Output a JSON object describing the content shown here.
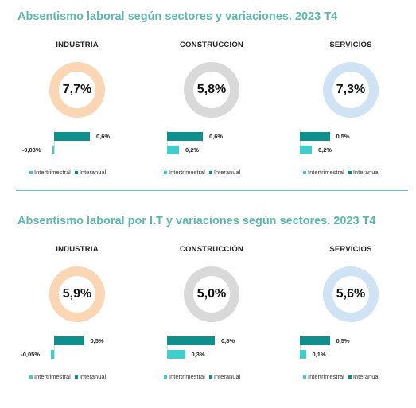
{
  "colors": {
    "title": "#5bb8ac",
    "intertrimestral": "#3ccfcb",
    "interanual": "#0e918c",
    "industria": "#fbd6b4",
    "construccion": "#d9d9d9",
    "servicios": "#cfe3f5"
  },
  "legend": {
    "intertrimestral": "Intertrimestral",
    "interanual": "Interanual"
  },
  "panels": [
    {
      "title": "Absentismo laboral según sectores y variaciones. 2023 T4",
      "sectors": [
        {
          "name": "INDUSTRIA",
          "rate": 7.7,
          "rate_label": "7,7%",
          "interanual": 0.6,
          "interanual_label": "0,6%",
          "intertrimestral": -0.03,
          "intertrimestral_label": "-0,03%"
        },
        {
          "name": "CONSTRUCCIÓN",
          "rate": 5.8,
          "rate_label": "5,8%",
          "interanual": 0.6,
          "interanual_label": "0,6%",
          "intertrimestral": 0.2,
          "intertrimestral_label": "0,2%"
        },
        {
          "name": "SERVICIOS",
          "rate": 7.3,
          "rate_label": "7,3%",
          "interanual": 0.5,
          "interanual_label": "0,5%",
          "intertrimestral": 0.2,
          "intertrimestral_label": "0,2%"
        }
      ]
    },
    {
      "title": "Absentismo laboral por I.T y variaciones según sectores. 2023 T4",
      "sectors": [
        {
          "name": "INDUSTRIA",
          "rate": 5.9,
          "rate_label": "5,9%",
          "interanual": 0.5,
          "interanual_label": "0,5%",
          "intertrimestral": -0.05,
          "intertrimestral_label": "-0,05%"
        },
        {
          "name": "CONSTRUCCIÓN",
          "rate": 5.0,
          "rate_label": "5,0%",
          "interanual": 0.8,
          "interanual_label": "0,8%",
          "intertrimestral": 0.3,
          "intertrimestral_label": "0,3%"
        },
        {
          "name": "SERVICIOS",
          "rate": 5.6,
          "rate_label": "5,6%",
          "interanual": 0.5,
          "interanual_label": "0,5%",
          "intertrimestral": 0.1,
          "intertrimestral_label": "0,1%"
        }
      ]
    }
  ],
  "chart_data": [
    {
      "type": "bar",
      "title": "Absentismo laboral según sectores y variaciones. 2023 T4",
      "categories": [
        "INDUSTRIA",
        "CONSTRUCCIÓN",
        "SERVICIOS"
      ],
      "rates": [
        7.7,
        5.8,
        7.3
      ],
      "series": [
        {
          "name": "Interanual",
          "values": [
            0.6,
            0.6,
            0.5
          ]
        },
        {
          "name": "Intertrimestral",
          "values": [
            -0.03,
            0.2,
            0.2
          ]
        }
      ]
    },
    {
      "type": "bar",
      "title": "Absentismo laboral por I.T y variaciones según sectores. 2023 T4",
      "categories": [
        "INDUSTRIA",
        "CONSTRUCCIÓN",
        "SERVICIOS"
      ],
      "rates": [
        5.9,
        5.0,
        5.6
      ],
      "series": [
        {
          "name": "Interanual",
          "values": [
            0.5,
            0.8,
            0.5
          ]
        },
        {
          "name": "Intertrimestral",
          "values": [
            -0.05,
            0.3,
            0.1
          ]
        }
      ]
    }
  ]
}
